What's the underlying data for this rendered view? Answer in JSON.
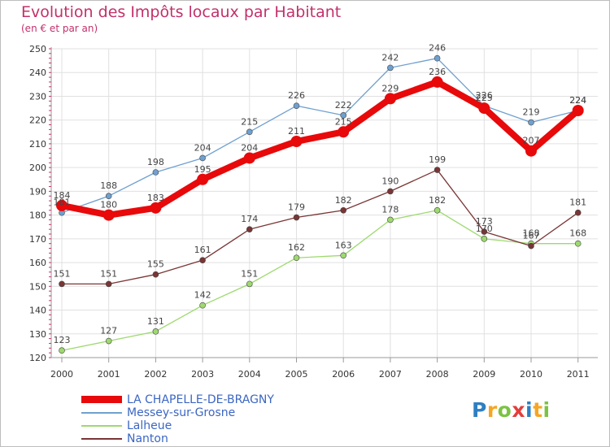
{
  "header": {
    "title": "Evolution des Impôts locaux par Habitant",
    "subtitle": "(en € et par an)"
  },
  "chart_data": {
    "type": "line",
    "title": "Evolution des Impôts locaux par Habitant",
    "subtitle": "(en € et par an)",
    "xlabel": "",
    "ylabel": "",
    "x": [
      "2000",
      "2001",
      "2002",
      "2003",
      "2004",
      "2005",
      "2006",
      "2007",
      "2008",
      "2009",
      "2010",
      "2011"
    ],
    "ylim": [
      120,
      250
    ],
    "yticks": [
      120,
      130,
      140,
      150,
      160,
      170,
      180,
      190,
      200,
      210,
      220,
      230,
      240,
      250
    ],
    "grid": true,
    "legend_position": "bottom",
    "series": [
      {
        "name": "LA CHAPELLE-DE-BRAGNY",
        "color": "#e8090b",
        "values": [
          184,
          180,
          183,
          195,
          204,
          211,
          215,
          229,
          236,
          225,
          207,
          224
        ]
      },
      {
        "name": "Messey-sur-Grosne",
        "color": "#6fa0cf",
        "values": [
          181,
          188,
          198,
          204,
          215,
          226,
          222,
          242,
          246,
          226,
          219,
          224
        ]
      },
      {
        "name": "Lalheue",
        "color": "#9ed96f",
        "values": [
          123,
          127,
          131,
          142,
          151,
          162,
          163,
          178,
          182,
          170,
          168,
          168
        ]
      },
      {
        "name": "Nanton",
        "color": "#7a3535",
        "values": [
          151,
          151,
          155,
          161,
          174,
          179,
          182,
          190,
          199,
          173,
          167,
          181
        ]
      }
    ]
  },
  "legend": {
    "items": [
      {
        "label": "LA CHAPELLE-DE-BRAGNY"
      },
      {
        "label": "Messey-sur-Grosne"
      },
      {
        "label": "Lalheue"
      },
      {
        "label": "Nanton"
      }
    ]
  },
  "logo": {
    "letters": [
      "P",
      "r",
      "o",
      "x",
      "i",
      "t",
      "i"
    ],
    "colors": [
      "#2d7fc2",
      "#f5a623",
      "#7cc243",
      "#e43d3d",
      "#2d7fc2",
      "#f5a623",
      "#7cc243"
    ]
  }
}
